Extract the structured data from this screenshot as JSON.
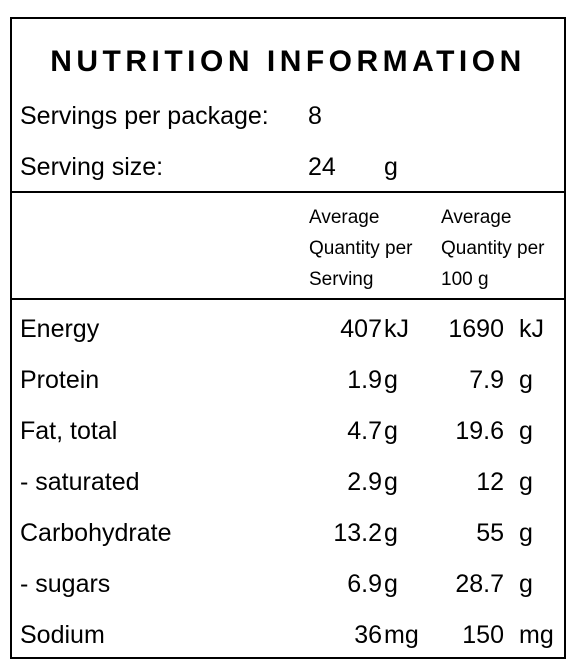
{
  "title": "NUTRITION INFORMATION",
  "servings": {
    "label": "Servings per package:",
    "value": "8"
  },
  "serving_size": {
    "label": "Serving size:",
    "value": "24",
    "unit": "g"
  },
  "columns": {
    "per_serving": [
      "Average",
      "Quantity per",
      "Serving"
    ],
    "per_100g": [
      "Average",
      "Quantity per",
      "100 g"
    ]
  },
  "rows": [
    {
      "label": "Energy",
      "serving": "407",
      "serving_unit": "kJ",
      "per100": "1690",
      "per100_unit": "kJ"
    },
    {
      "label": "Protein",
      "serving": "1.9",
      "serving_unit": "g",
      "per100": "7.9",
      "per100_unit": "g"
    },
    {
      "label": "Fat, total",
      "serving": "4.7",
      "serving_unit": "g",
      "per100": "19.6",
      "per100_unit": "g"
    },
    {
      "label": "- saturated",
      "serving": "2.9",
      "serving_unit": "g",
      "per100": "12",
      "per100_unit": "g"
    },
    {
      "label": "Carbohydrate",
      "serving": "13.2",
      "serving_unit": "g",
      "per100": "55",
      "per100_unit": "g"
    },
    {
      "label": "- sugars",
      "serving": "6.9",
      "serving_unit": "g",
      "per100": "28.7",
      "per100_unit": "g"
    },
    {
      "label": "Sodium",
      "serving": "36",
      "serving_unit": "mg",
      "per100": "150",
      "per100_unit": "mg"
    }
  ]
}
